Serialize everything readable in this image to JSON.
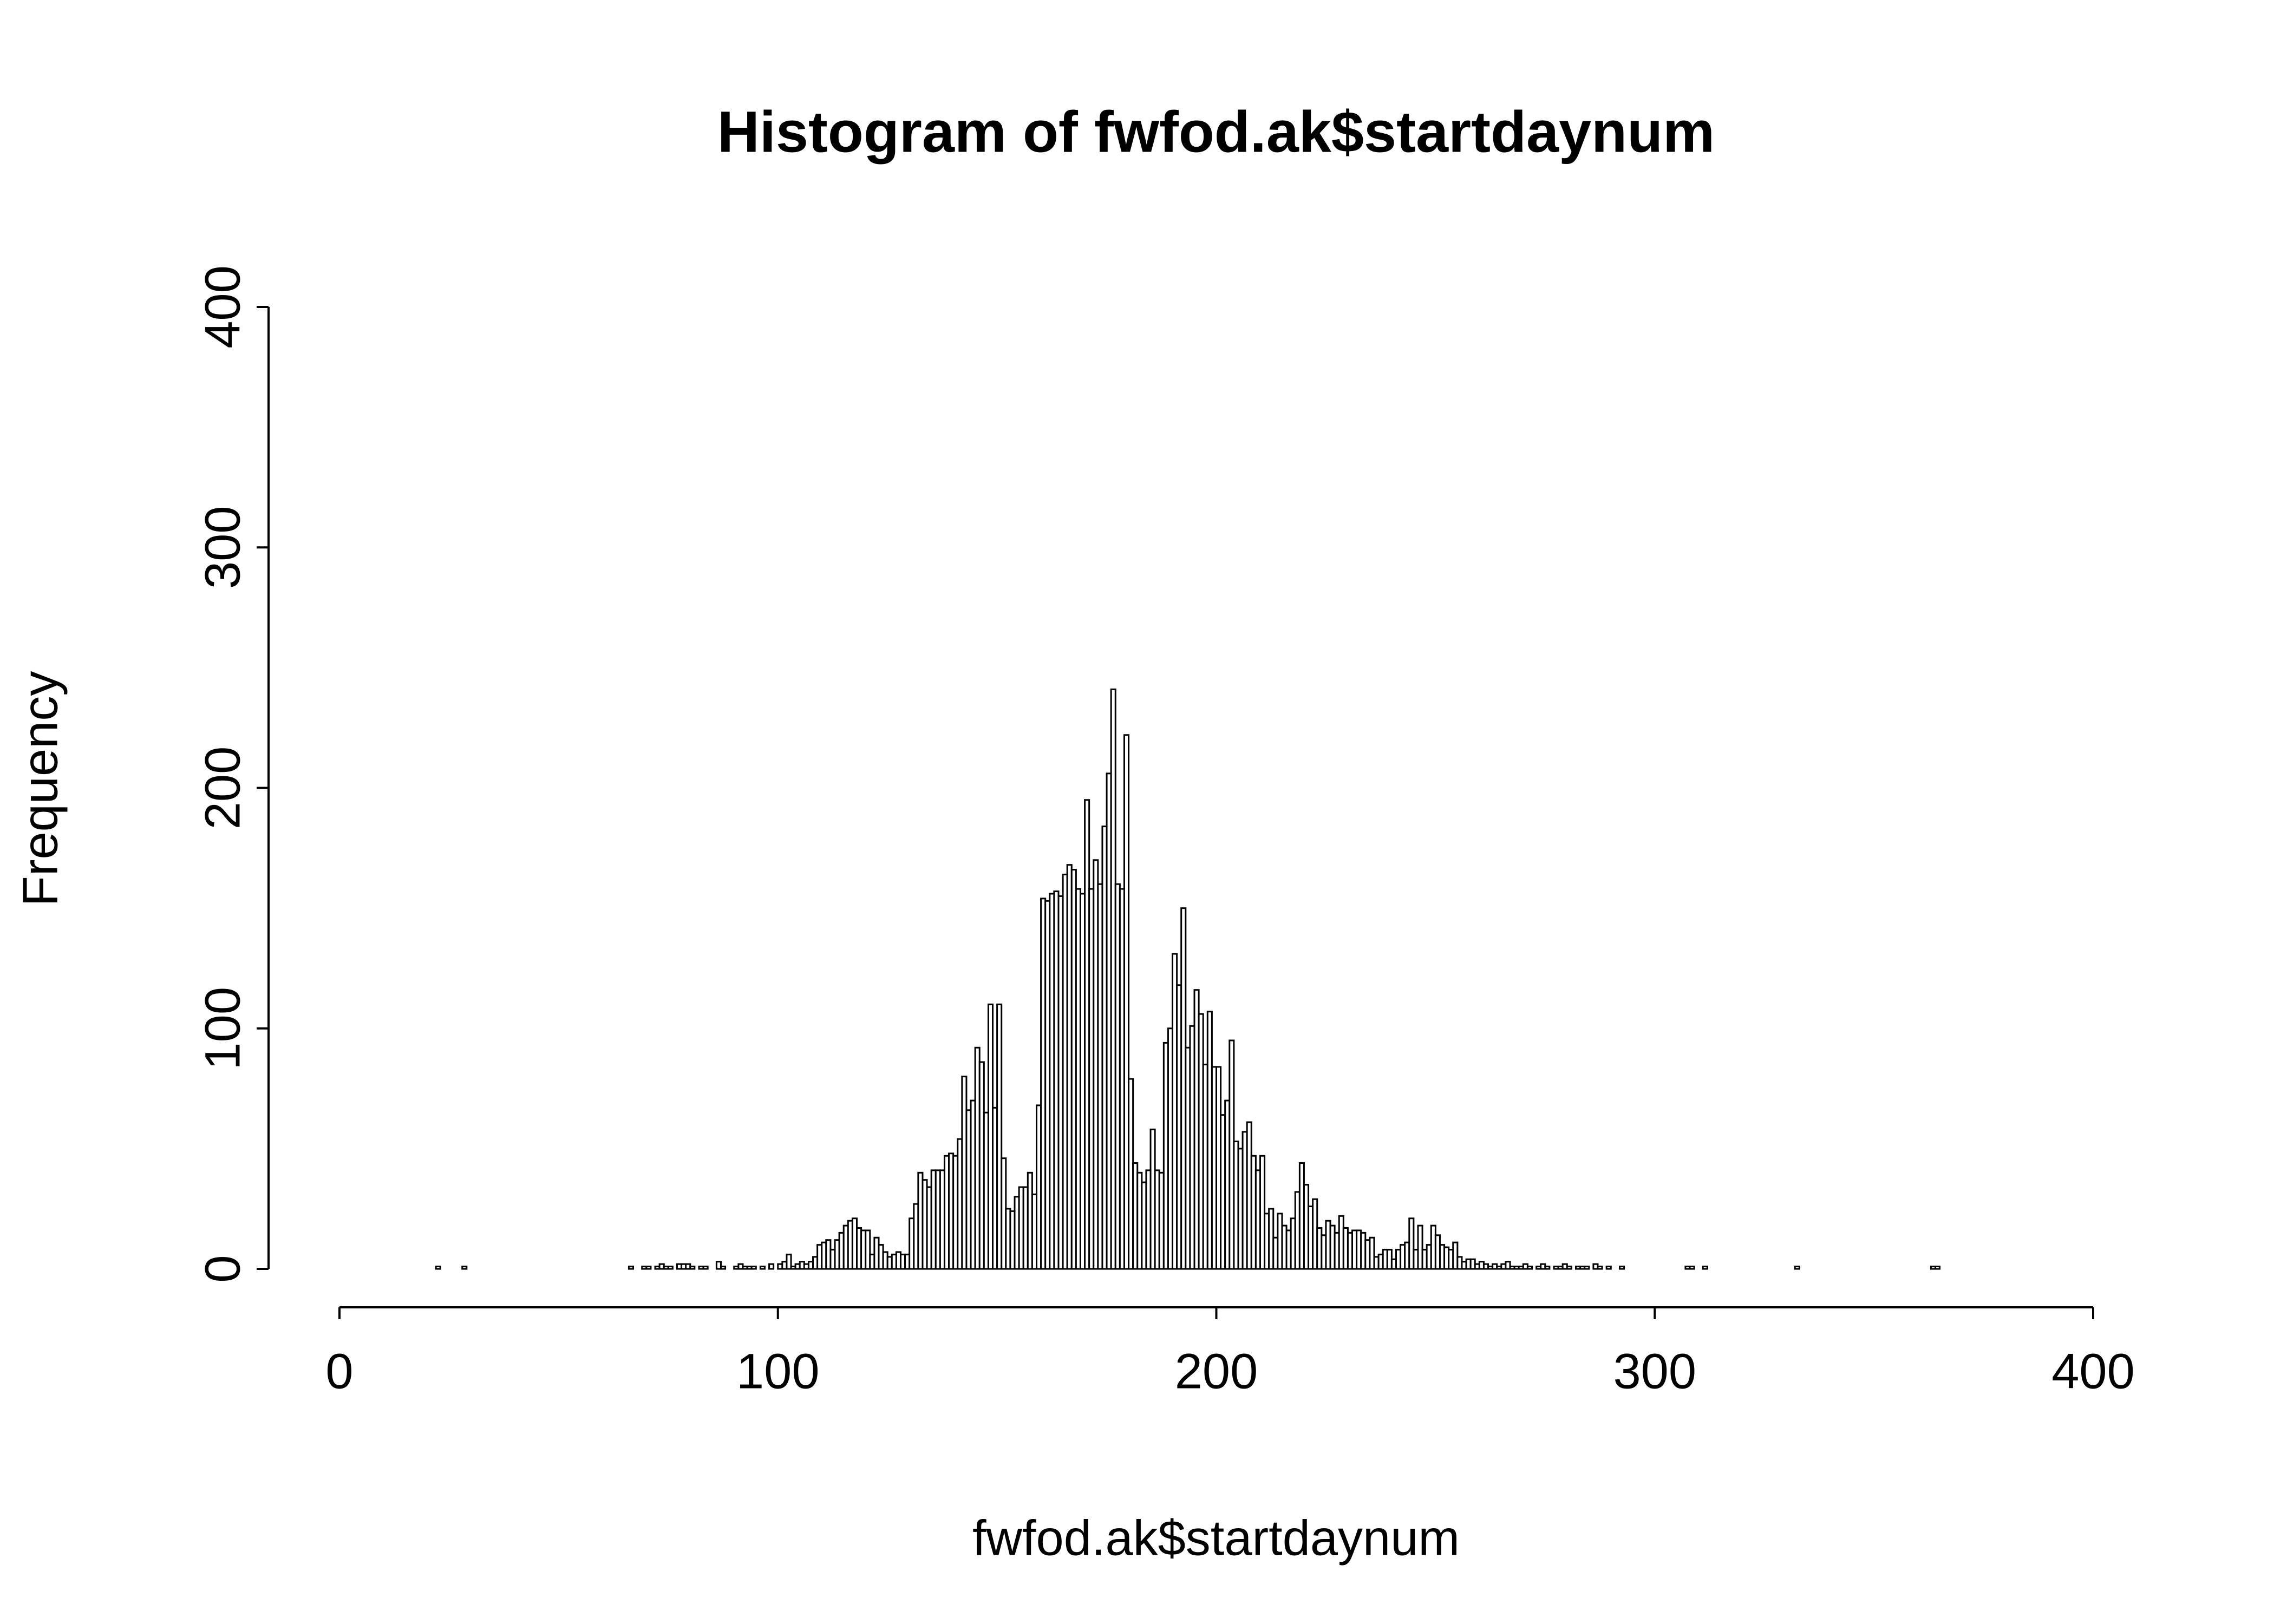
{
  "chart_data": {
    "type": "histogram",
    "title": "Histogram of fwfod.ak$startdaynum",
    "x_label": "fwfod.ak$startdaynum",
    "y_label": "Frequency",
    "bins": [
      0,
      1,
      2,
      3,
      4,
      5,
      6,
      7,
      8,
      9,
      10,
      11,
      12,
      13,
      14,
      15,
      16,
      17,
      18,
      19,
      20,
      21,
      22,
      23,
      24,
      25,
      26,
      27,
      28,
      29,
      30,
      31,
      32,
      33,
      34,
      35,
      36,
      37,
      38,
      39,
      40,
      41,
      42,
      43,
      44,
      45,
      46,
      47,
      48,
      49,
      50,
      51,
      52,
      53,
      54,
      55,
      56,
      57,
      58,
      59,
      60,
      61,
      62,
      63,
      64,
      65,
      66,
      67,
      68,
      69,
      70,
      71,
      72,
      73,
      74,
      75,
      76,
      77,
      78,
      79,
      80,
      81,
      82,
      83,
      84,
      85,
      86,
      87,
      88,
      89,
      90,
      91,
      92,
      93,
      94,
      95,
      96,
      97,
      98,
      99,
      100,
      101,
      102,
      103,
      104,
      105,
      106,
      107,
      108,
      109,
      110,
      111,
      112,
      113,
      114,
      115,
      116,
      117,
      118,
      119,
      120,
      121,
      122,
      123,
      124,
      125,
      126,
      127,
      128,
      129,
      130,
      131,
      132,
      133,
      134,
      135,
      136,
      137,
      138,
      139,
      140,
      141,
      142,
      143,
      144,
      145,
      146,
      147,
      148,
      149,
      150,
      151,
      152,
      153,
      154,
      155,
      156,
      157,
      158,
      159,
      160,
      161,
      162,
      163,
      164,
      165,
      166,
      167,
      168,
      169,
      170,
      171,
      172,
      173,
      174,
      175,
      176,
      177,
      178,
      179,
      180,
      181,
      182,
      183,
      184,
      185,
      186,
      187,
      188,
      189,
      190,
      191,
      192,
      193,
      194,
      195,
      196,
      197,
      198,
      199,
      200,
      201,
      202,
      203,
      204,
      205,
      206,
      207,
      208,
      209,
      210,
      211,
      212,
      213,
      214,
      215,
      216,
      217,
      218,
      219,
      220,
      221,
      222,
      223,
      224,
      225,
      226,
      227,
      228,
      229,
      230,
      231,
      232,
      233,
      234,
      235,
      236,
      237,
      238,
      239,
      240,
      241,
      242,
      243,
      244,
      245,
      246,
      247,
      248,
      249,
      250,
      251,
      252,
      253,
      254,
      255,
      256,
      257,
      258,
      259,
      260,
      261,
      262,
      263,
      264,
      265,
      266,
      267,
      268,
      269,
      270,
      271,
      272,
      273,
      274,
      275,
      276,
      277,
      278,
      279,
      280,
      281,
      282,
      283,
      284,
      285,
      286,
      287,
      288,
      289,
      290,
      291,
      292,
      293,
      294,
      295,
      296,
      297,
      298,
      299,
      300,
      301,
      302,
      303,
      304,
      305,
      306,
      307,
      308,
      309,
      310,
      311,
      312,
      313,
      314,
      315,
      316,
      317,
      318,
      319,
      320,
      321,
      322,
      323,
      324,
      325,
      326,
      327,
      328,
      329,
      330,
      331,
      332,
      333,
      334,
      335,
      336,
      337,
      338,
      339,
      340,
      341,
      342,
      343,
      344,
      345,
      346,
      347,
      348,
      349,
      350,
      351,
      352,
      353,
      354,
      355,
      356,
      357,
      358,
      359,
      360,
      361,
      362,
      363,
      364,
      365,
      366
    ],
    "values": [
      0,
      0,
      0,
      0,
      0,
      0,
      0,
      0,
      0,
      0,
      0,
      0,
      0,
      0,
      0,
      0,
      0,
      0,
      0,
      0,
      0,
      0,
      1,
      0,
      0,
      0,
      0,
      0,
      1,
      0,
      0,
      0,
      0,
      0,
      0,
      0,
      0,
      0,
      0,
      0,
      0,
      0,
      0,
      0,
      0,
      0,
      0,
      0,
      0,
      0,
      0,
      0,
      0,
      0,
      0,
      0,
      0,
      0,
      0,
      0,
      0,
      0,
      0,
      0,
      0,
      0,
      1,
      0,
      0,
      1,
      1,
      0,
      1,
      2,
      1,
      1,
      0,
      2,
      2,
      2,
      1,
      0,
      1,
      1,
      0,
      0,
      3,
      1,
      0,
      0,
      1,
      2,
      1,
      1,
      1,
      0,
      1,
      0,
      2,
      0,
      2,
      3,
      6,
      1,
      2,
      3,
      2,
      3,
      5,
      10,
      11,
      12,
      8,
      12,
      15,
      18,
      20,
      21,
      17,
      16,
      16,
      6,
      13,
      10,
      7,
      5,
      6,
      7,
      6,
      6,
      21,
      27,
      40,
      37,
      34,
      41,
      41,
      41,
      47,
      48,
      47,
      54,
      80,
      66,
      70,
      92,
      86,
      65,
      110,
      67,
      110,
      46,
      25,
      24,
      30,
      34,
      34,
      40,
      31,
      68,
      154,
      153,
      156,
      157,
      155,
      164,
      168,
      166,
      158,
      156,
      195,
      158,
      170,
      160,
      184,
      206,
      241,
      160,
      158,
      222,
      79,
      44,
      40,
      36,
      41,
      58,
      41,
      40,
      94,
      100,
      131,
      118,
      150,
      92,
      101,
      116,
      106,
      85,
      107,
      84,
      84,
      64,
      70,
      95,
      53,
      50,
      57,
      61,
      47,
      41,
      47,
      23,
      25,
      13,
      23,
      18,
      16,
      21,
      32,
      44,
      35,
      26,
      29,
      17,
      14,
      20,
      18,
      15,
      22,
      17,
      15,
      16,
      16,
      15,
      12,
      13,
      5,
      6,
      8,
      8,
      4,
      8,
      10,
      11,
      21,
      8,
      18,
      8,
      10,
      18,
      14,
      10,
      9,
      8,
      11,
      5,
      3,
      4,
      4,
      2,
      3,
      2,
      1,
      2,
      1,
      2,
      3,
      1,
      1,
      1,
      2,
      1,
      0,
      1,
      2,
      1,
      0,
      1,
      1,
      2,
      1,
      0,
      1,
      1,
      1,
      0,
      2,
      1,
      0,
      1,
      0,
      0,
      1,
      0,
      0,
      0,
      0,
      0,
      0,
      0,
      0,
      0,
      0,
      0,
      0,
      0,
      0,
      1,
      1,
      0,
      0,
      1,
      0,
      0,
      0,
      0,
      0,
      0,
      0,
      0,
      0,
      0,
      0,
      0,
      0,
      0,
      0,
      0,
      0,
      0,
      0,
      0,
      1,
      0,
      0,
      0,
      0,
      0,
      0,
      0,
      0,
      0,
      0,
      0,
      0,
      0,
      0,
      0,
      0,
      0,
      0,
      0,
      0,
      0,
      0,
      0,
      0,
      0,
      0,
      0,
      0,
      0,
      0,
      1,
      1,
      0
    ],
    "color": "#ffffff",
    "edgecolor": "#000000",
    "xlim": [
      0,
      400
    ],
    "xticks": [
      0,
      100,
      200,
      300,
      400
    ],
    "ylim": [
      0,
      400
    ],
    "yticks": [
      0,
      100,
      200,
      300,
      400
    ],
    "grid": false
  }
}
